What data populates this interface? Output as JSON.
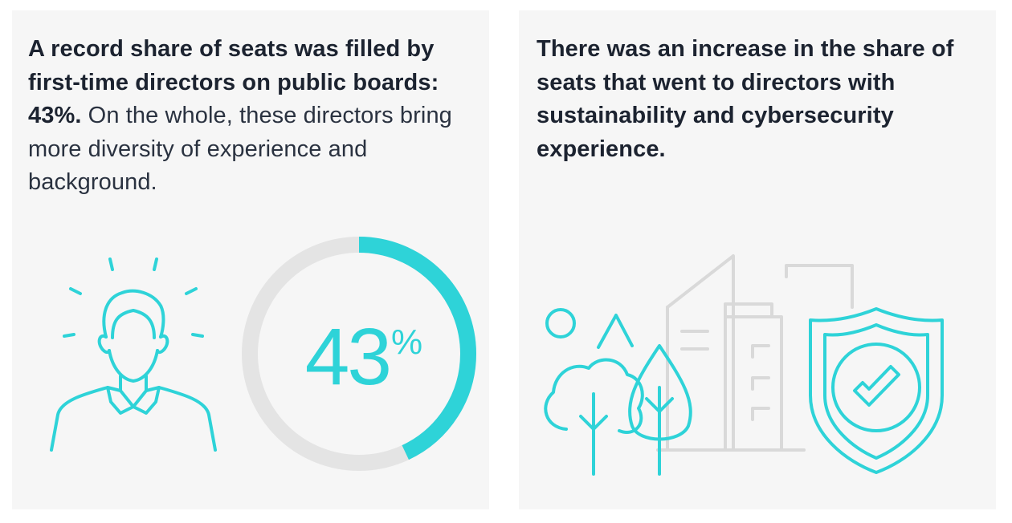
{
  "left_panel": {
    "heading_bold": "A record share of seats was filled by first-time directors on public boards: 43%.",
    "heading_light": "On the whole, these directors bring more diversity of experience and background.",
    "ring": {
      "value": 43,
      "number_text": "43",
      "unit_text": "%"
    },
    "icon": "person-idea-icon"
  },
  "right_panel": {
    "heading_bold": "There was an increase in the share of seats that went to directors with sustainability and cybersecurity experience.",
    "icons": [
      "sun-icon",
      "mountain-icon",
      "trees-icon",
      "buildings-icon",
      "shield-check-icon"
    ]
  },
  "colors": {
    "accent": "#2ed3d8",
    "ring_track": "#e4e4e4",
    "building_lines": "#d9d9d9",
    "panel_bg": "#f6f6f6",
    "text": "#1c2330"
  }
}
